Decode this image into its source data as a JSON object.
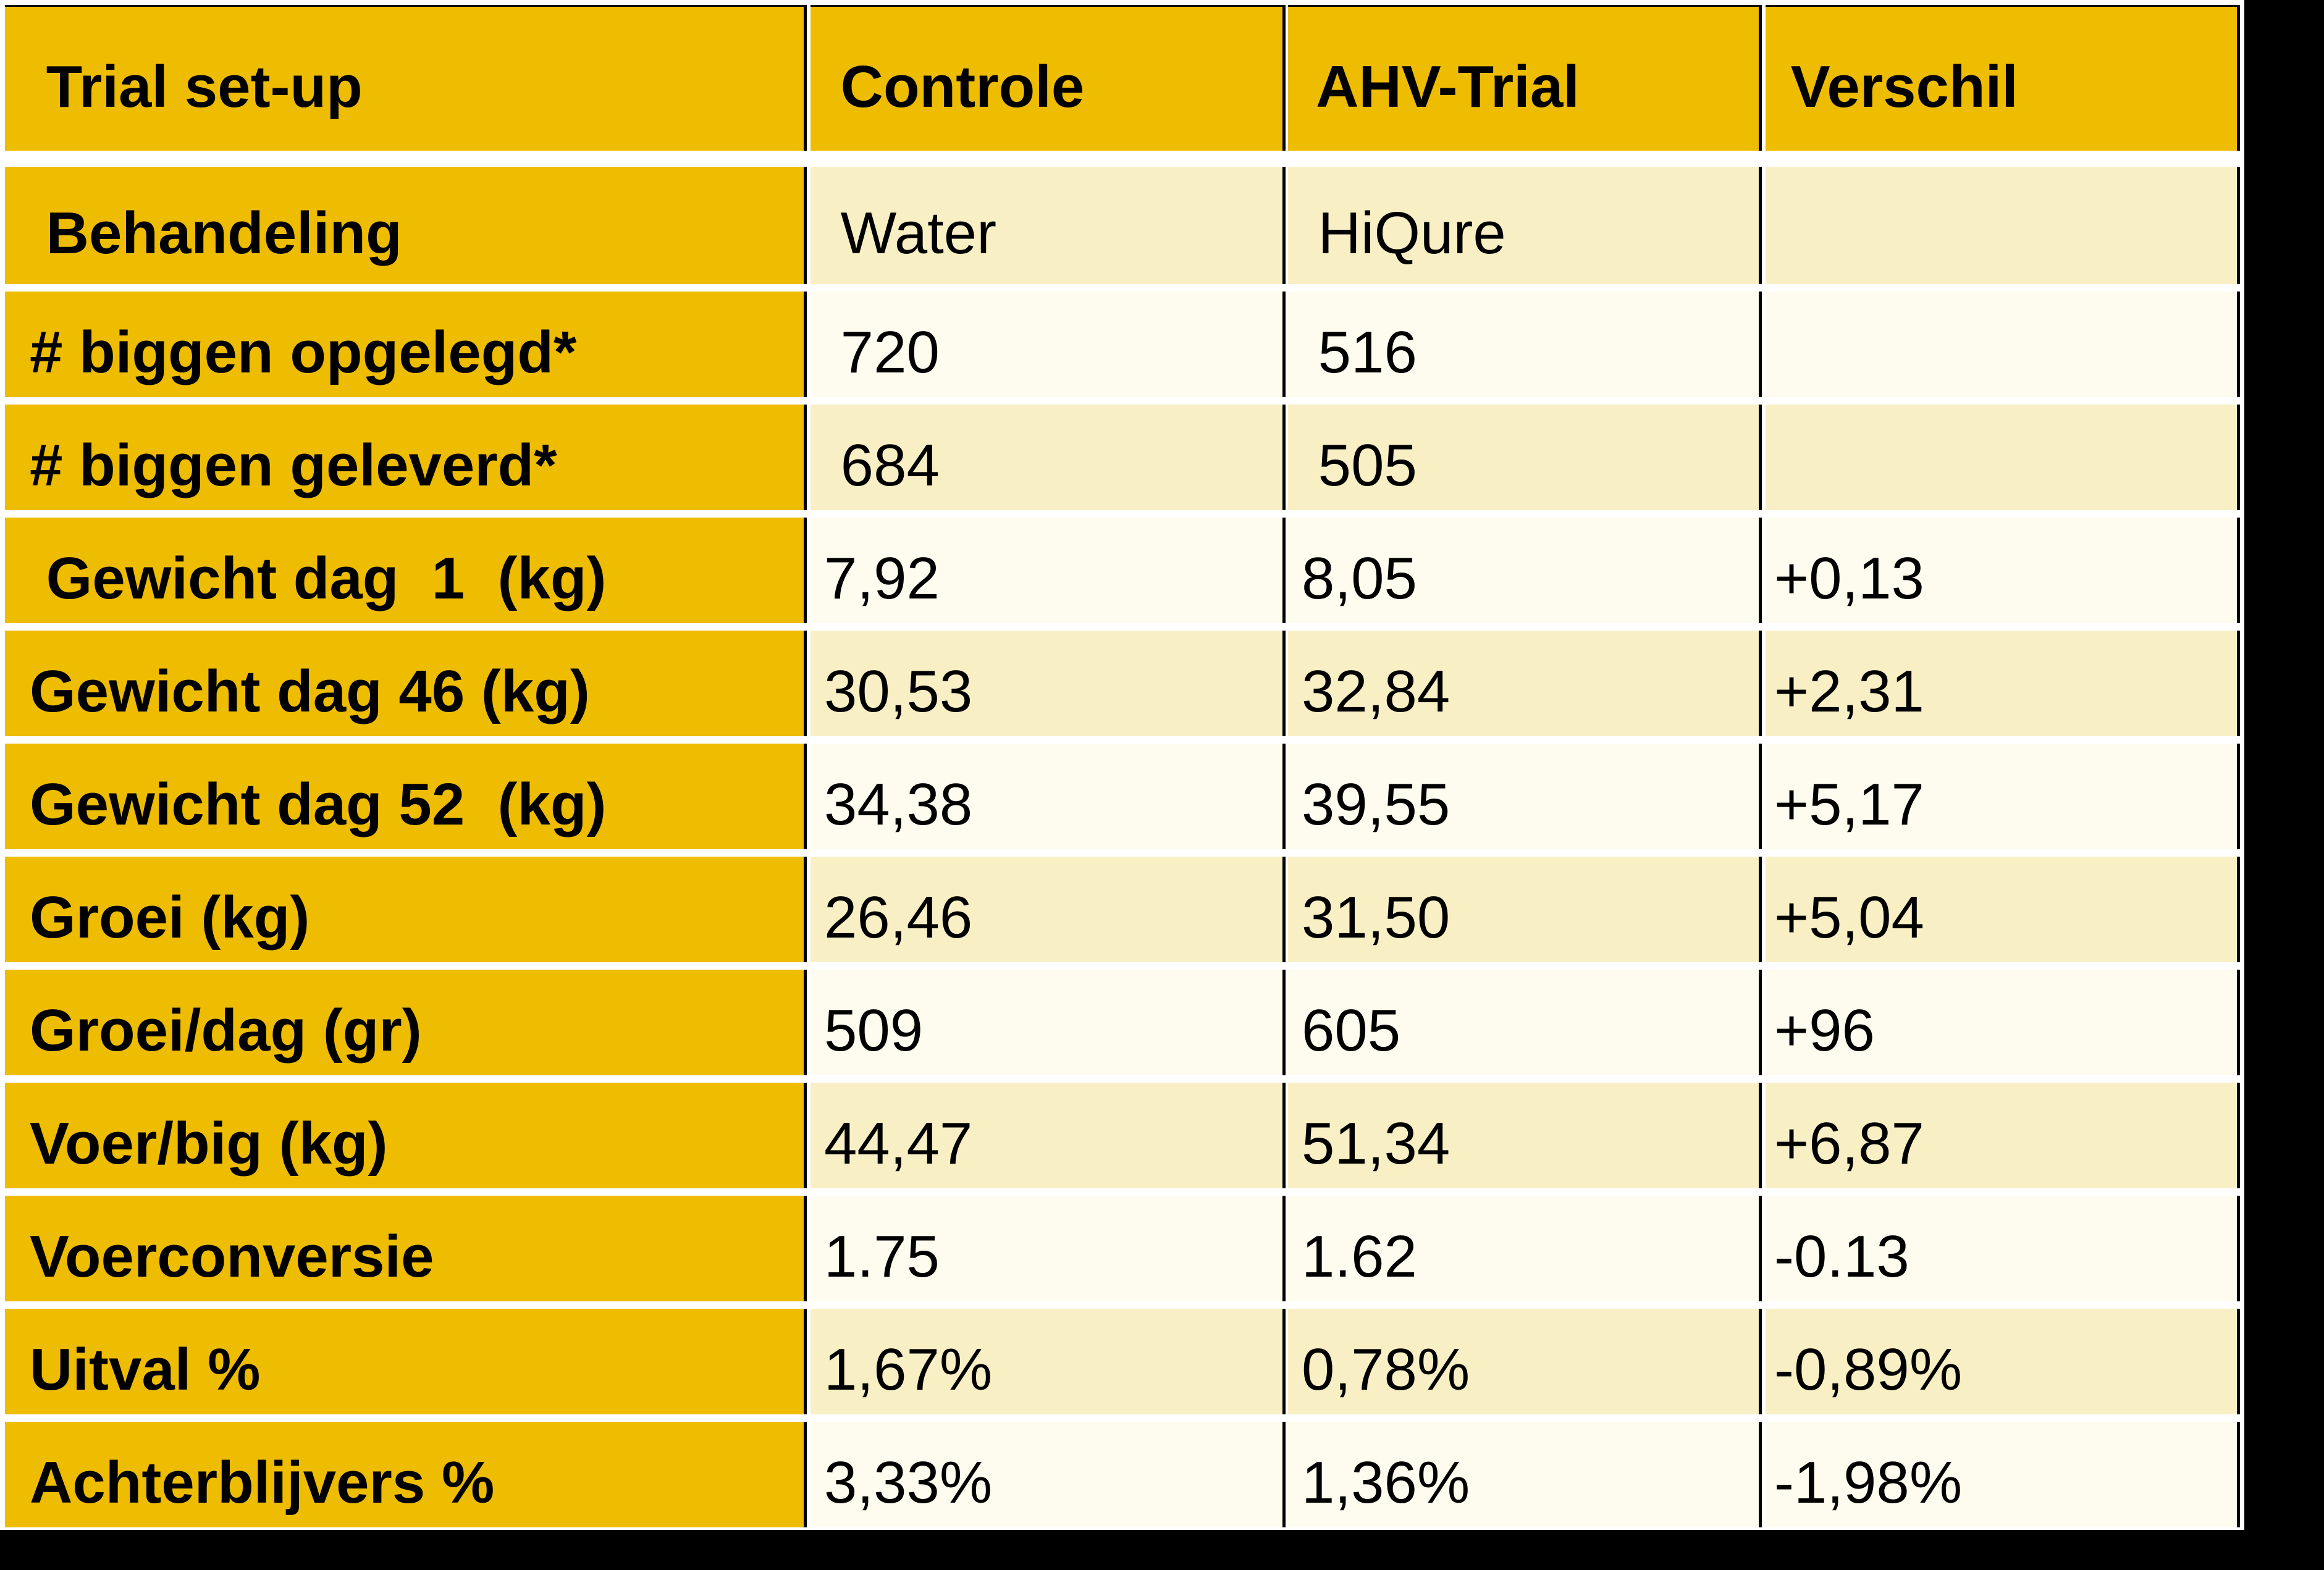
{
  "colors": {
    "gold": "#EEBC00",
    "beige": "#F8EFC5",
    "cream": "#FEFCEE",
    "gap_white": "#FFFFFF",
    "line_black": "#000000",
    "text_black": "#000000",
    "page_black": "#000000"
  },
  "table": {
    "header": {
      "trial_setup": " Trial set-up",
      "controle": " Controle",
      "ahv_trial": " AHV-Trial",
      "verschil": " Verschil"
    },
    "rows": [
      {
        "label": " Behandeling",
        "controle": " Water",
        "ahv": " HiQure",
        "verschil": ""
      },
      {
        "label": "# biggen opgelegd*",
        "controle": " 720",
        "ahv": " 516",
        "verschil": ""
      },
      {
        "label": "# biggen geleverd*",
        "controle": " 684",
        "ahv": " 505",
        "verschil": ""
      },
      {
        "label": " Gewicht dag  1  (kg)",
        "controle": "7,92",
        "ahv": "8,05",
        "verschil": "+0,13"
      },
      {
        "label": "Gewicht dag 46 (kg)",
        "controle": "30,53",
        "ahv": "32,84",
        "verschil": "+2,31"
      },
      {
        "label": "Gewicht dag 52  (kg)",
        "controle": "34,38",
        "ahv": "39,55",
        "verschil": "+5,17"
      },
      {
        "label": "Groei (kg)",
        "controle": "26,46",
        "ahv": "31,50",
        "verschil": "+5,04"
      },
      {
        "label": "Groei/dag (gr)",
        "controle": "509",
        "ahv": "605",
        "verschil": "+96"
      },
      {
        "label": "Voer/big (kg)",
        "controle": "44,47",
        "ahv": "51,34",
        "verschil": "+6,87"
      },
      {
        "label": "Voerconversie",
        "controle": "1.75",
        "ahv": "1.62",
        "verschil": "-0.13"
      },
      {
        "label": "Uitval %",
        "controle": "1,67%",
        "ahv": "0,78%",
        "verschil": "-0,89%"
      },
      {
        "label": "Achterblijvers %",
        "controle": "3,33%",
        "ahv": "1,36%",
        "verschil": "-1,98%"
      }
    ]
  },
  "chart_data": {
    "type": "table",
    "title": "Trial set-up",
    "columns": [
      "Trial set-up",
      "Controle",
      "AHV-Trial",
      "Verschil"
    ],
    "rows": [
      [
        "Behandeling",
        "Water",
        "HiQure",
        ""
      ],
      [
        "# biggen opgelegd*",
        "720",
        "516",
        ""
      ],
      [
        "# biggen geleverd*",
        "684",
        "505",
        ""
      ],
      [
        "Gewicht dag 1 (kg)",
        "7,92",
        "8,05",
        "+0,13"
      ],
      [
        "Gewicht dag 46 (kg)",
        "30,53",
        "32,84",
        "+2,31"
      ],
      [
        "Gewicht dag 52 (kg)",
        "34,38",
        "39,55",
        "+5,17"
      ],
      [
        "Groei (kg)",
        "26,46",
        "31,50",
        "+5,04"
      ],
      [
        "Groei/dag (gr)",
        "509",
        "605",
        "+96"
      ],
      [
        "Voer/big (kg)",
        "44,47",
        "51,34",
        "+6,87"
      ],
      [
        "Voerconversie",
        "1.75",
        "1.62",
        "-0.13"
      ],
      [
        "Uitval %",
        "1,67%",
        "0,78%",
        "-0,89%"
      ],
      [
        "Achterblijvers %",
        "3,33%",
        "1,36%",
        "-1,98%"
      ]
    ],
    "layout": {
      "header_fill": "gold",
      "label_column_fill": "gold",
      "body_row_fills_alternate": [
        "beige",
        "cream"
      ],
      "grid": "thin black vertical dividers, white horizontal gaps"
    }
  }
}
